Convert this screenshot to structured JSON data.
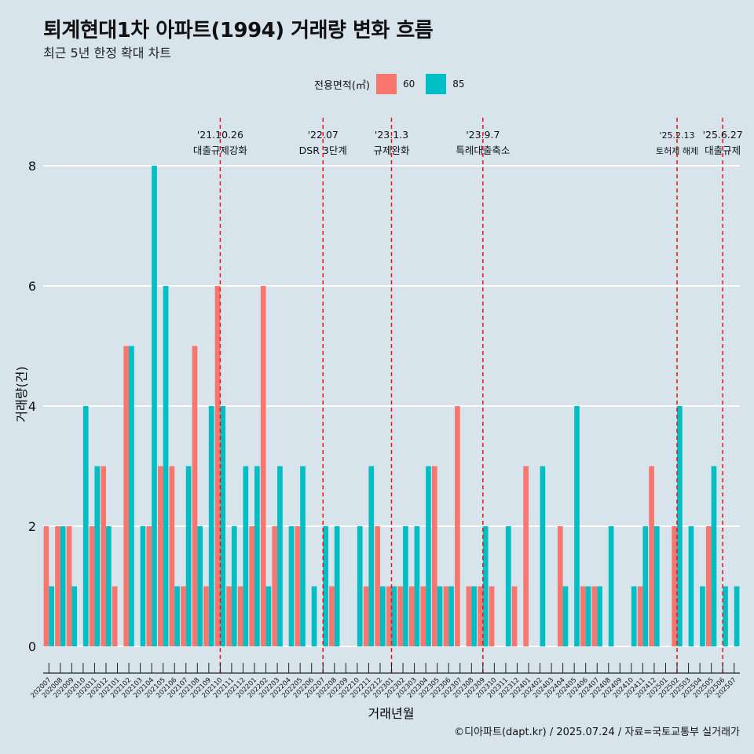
{
  "header": {
    "title": "퇴계현대1차 아파트(1994) 거래량 변화 흐름",
    "subtitle": "최근 5년 한정 확대 차트"
  },
  "caption": "©디아파트(dapt.kr) / 2025.07.24 / 자료=국토교통부 실거래가",
  "colors": {
    "s60": "#f8766d",
    "s85": "#00bfc4",
    "event": "#ee1111",
    "background": "#d7e4ec",
    "grid": "#ffffff"
  },
  "chart_data": {
    "type": "bar",
    "title": "퇴계현대1차 아파트(1994) 거래량 변화 흐름",
    "xlabel": "거래년월",
    "ylabel": "거래량(건)",
    "ylim": [
      0,
      8
    ],
    "yticks": [
      0,
      2,
      4,
      6,
      8
    ],
    "legend_title": "전용면적(㎡)",
    "categories": [
      "202007",
      "202008",
      "202009",
      "202010",
      "202011",
      "202012",
      "202101",
      "202102",
      "202103",
      "202104",
      "202105",
      "202106",
      "202107",
      "202108",
      "202109",
      "202110",
      "202111",
      "202112",
      "202201",
      "202202",
      "202203",
      "202204",
      "202205",
      "202206",
      "202207",
      "202208",
      "202209",
      "202210",
      "202211",
      "202212",
      "202301",
      "202302",
      "202303",
      "202304",
      "202305",
      "202306",
      "202307",
      "202308",
      "202309",
      "202310",
      "202311",
      "202312",
      "202401",
      "202402",
      "202403",
      "202404",
      "202405",
      "202406",
      "202407",
      "202408",
      "202409",
      "202410",
      "202411",
      "202412",
      "202501",
      "202502",
      "202503",
      "202504",
      "202505",
      "202506",
      "202507"
    ],
    "series": [
      {
        "name": "60",
        "values": [
          2,
          2,
          2,
          0,
          2,
          3,
          1,
          5,
          0,
          2,
          3,
          3,
          1,
          5,
          1,
          6,
          1,
          1,
          2,
          6,
          2,
          0,
          2,
          0,
          0,
          1,
          0,
          0,
          1,
          2,
          1,
          1,
          1,
          1,
          3,
          1,
          4,
          1,
          1,
          1,
          0,
          1,
          3,
          0,
          0,
          2,
          0,
          1,
          1,
          0,
          0,
          0,
          1,
          3,
          0,
          2,
          0,
          0,
          2,
          0,
          0
        ]
      },
      {
        "name": "85",
        "values": [
          1,
          2,
          1,
          4,
          3,
          2,
          0,
          5,
          2,
          8,
          6,
          1,
          3,
          2,
          4,
          4,
          2,
          3,
          3,
          1,
          3,
          2,
          3,
          1,
          2,
          2,
          0,
          2,
          3,
          1,
          1,
          2,
          2,
          3,
          1,
          1,
          0,
          1,
          2,
          0,
          2,
          0,
          0,
          3,
          0,
          1,
          4,
          1,
          1,
          2,
          0,
          1,
          2,
          2,
          0,
          4,
          2,
          1,
          3,
          1,
          1
        ]
      }
    ],
    "events": [
      {
        "date": "'21.10.26",
        "label": "대출규제강화",
        "at": "202110"
      },
      {
        "date": "'22.07",
        "label": "DSR 3단계",
        "at": "202207"
      },
      {
        "date": "'23.1.3",
        "label": "규제완화",
        "at": "202301"
      },
      {
        "date": "'23.9.7",
        "label": "특례대출축소",
        "at": "202309"
      },
      {
        "date": "'25.2.13",
        "label": "토허제 해제",
        "at": "202502"
      },
      {
        "date": "'25.6.27",
        "label": "대출규제",
        "at": "202506"
      }
    ]
  }
}
